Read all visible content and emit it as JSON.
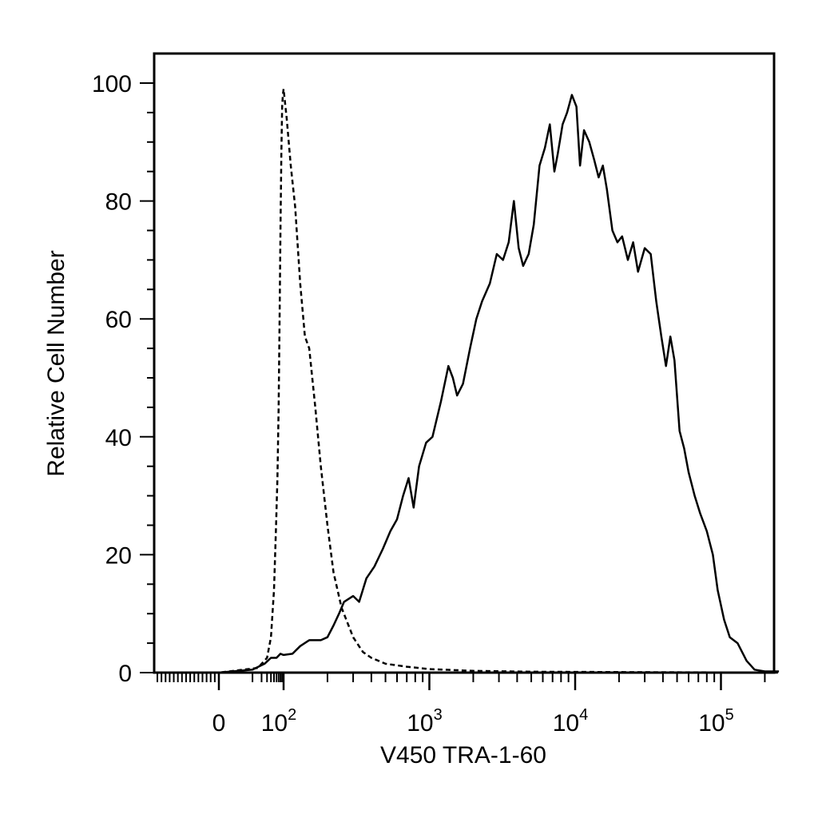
{
  "chart_data": {
    "type": "line",
    "xlabel": "V450 TRA-1-60",
    "ylabel": "Relative Cell Number",
    "x_scale": "biexponential",
    "x_ticks": [
      {
        "value": 0,
        "base": "0",
        "exp": ""
      },
      {
        "value": 100,
        "base": "10",
        "exp": "2"
      },
      {
        "value": 1000,
        "base": "10",
        "exp": "3"
      },
      {
        "value": 10000,
        "base": "10",
        "exp": "4"
      },
      {
        "value": 100000,
        "base": "10",
        "exp": "5"
      }
    ],
    "y_ticks": [
      0,
      20,
      40,
      60,
      80,
      100
    ],
    "ylim": [
      0,
      100
    ],
    "xlim": [
      -150,
      250000
    ],
    "series": [
      {
        "style": "dashed",
        "color": "#000000",
        "points": [
          [
            -150,
            0
          ],
          [
            0,
            0
          ],
          [
            15,
            0.8
          ],
          [
            30,
            2.5
          ],
          [
            40,
            6
          ],
          [
            50,
            14
          ],
          [
            58,
            25
          ],
          [
            64,
            33
          ],
          [
            70,
            45
          ],
          [
            75,
            60
          ],
          [
            80,
            75
          ],
          [
            85,
            88
          ],
          [
            90,
            96
          ],
          [
            95,
            98
          ],
          [
            100,
            99
          ],
          [
            105,
            94
          ],
          [
            112,
            86
          ],
          [
            120,
            79
          ],
          [
            130,
            66
          ],
          [
            140,
            57
          ],
          [
            150,
            55
          ],
          [
            165,
            45
          ],
          [
            180,
            35
          ],
          [
            200,
            25
          ],
          [
            220,
            17
          ],
          [
            250,
            11
          ],
          [
            300,
            6
          ],
          [
            350,
            3.5
          ],
          [
            400,
            2.5
          ],
          [
            500,
            1.5
          ],
          [
            700,
            1
          ],
          [
            1000,
            0.6
          ],
          [
            2000,
            0.3
          ],
          [
            5000,
            0.15
          ],
          [
            20000,
            0.1
          ],
          [
            250000,
            0
          ]
        ]
      },
      {
        "style": "solid",
        "color": "#000000",
        "points": [
          [
            -150,
            0
          ],
          [
            0,
            0
          ],
          [
            10,
            0.5
          ],
          [
            25,
            1.5
          ],
          [
            40,
            2.5
          ],
          [
            60,
            2.5
          ],
          [
            80,
            3.2
          ],
          [
            100,
            3
          ],
          [
            115,
            3.2
          ],
          [
            130,
            4.5
          ],
          [
            150,
            5.5
          ],
          [
            180,
            5.5
          ],
          [
            200,
            6
          ],
          [
            220,
            8
          ],
          [
            240,
            10
          ],
          [
            260,
            12
          ],
          [
            300,
            13
          ],
          [
            330,
            12
          ],
          [
            370,
            16
          ],
          [
            420,
            18
          ],
          [
            480,
            21
          ],
          [
            540,
            24
          ],
          [
            600,
            26
          ],
          [
            660,
            30
          ],
          [
            720,
            33
          ],
          [
            780,
            28
          ],
          [
            850,
            35
          ],
          [
            950,
            39
          ],
          [
            1050,
            40
          ],
          [
            1200,
            46
          ],
          [
            1350,
            52
          ],
          [
            1450,
            50
          ],
          [
            1550,
            47
          ],
          [
            1700,
            49
          ],
          [
            1900,
            55
          ],
          [
            2100,
            60
          ],
          [
            2300,
            63
          ],
          [
            2600,
            66
          ],
          [
            2900,
            71
          ],
          [
            3200,
            70
          ],
          [
            3500,
            73
          ],
          [
            3800,
            80
          ],
          [
            4100,
            72
          ],
          [
            4400,
            69
          ],
          [
            4800,
            71
          ],
          [
            5200,
            76
          ],
          [
            5700,
            86
          ],
          [
            6200,
            89
          ],
          [
            6700,
            93
          ],
          [
            7200,
            85
          ],
          [
            7600,
            88
          ],
          [
            8200,
            93
          ],
          [
            8800,
            95
          ],
          [
            9500,
            98
          ],
          [
            10200,
            96
          ],
          [
            10800,
            86
          ],
          [
            11500,
            92
          ],
          [
            12500,
            90
          ],
          [
            13500,
            87
          ],
          [
            14500,
            84
          ],
          [
            15500,
            86
          ],
          [
            16500,
            82
          ],
          [
            18000,
            75
          ],
          [
            19500,
            73
          ],
          [
            21000,
            74
          ],
          [
            23000,
            70
          ],
          [
            25000,
            73
          ],
          [
            27000,
            68
          ],
          [
            30000,
            72
          ],
          [
            33000,
            71
          ],
          [
            36000,
            63
          ],
          [
            39000,
            57
          ],
          [
            42000,
            52
          ],
          [
            45000,
            57
          ],
          [
            48000,
            53
          ],
          [
            52000,
            41
          ],
          [
            56000,
            38
          ],
          [
            60000,
            34
          ],
          [
            66000,
            30
          ],
          [
            72000,
            27
          ],
          [
            80000,
            24
          ],
          [
            88000,
            20
          ],
          [
            95000,
            14
          ],
          [
            105000,
            9
          ],
          [
            115000,
            6
          ],
          [
            130000,
            5
          ],
          [
            150000,
            2
          ],
          [
            170000,
            0.5
          ],
          [
            200000,
            0.2
          ],
          [
            250000,
            0.2
          ]
        ]
      }
    ]
  }
}
